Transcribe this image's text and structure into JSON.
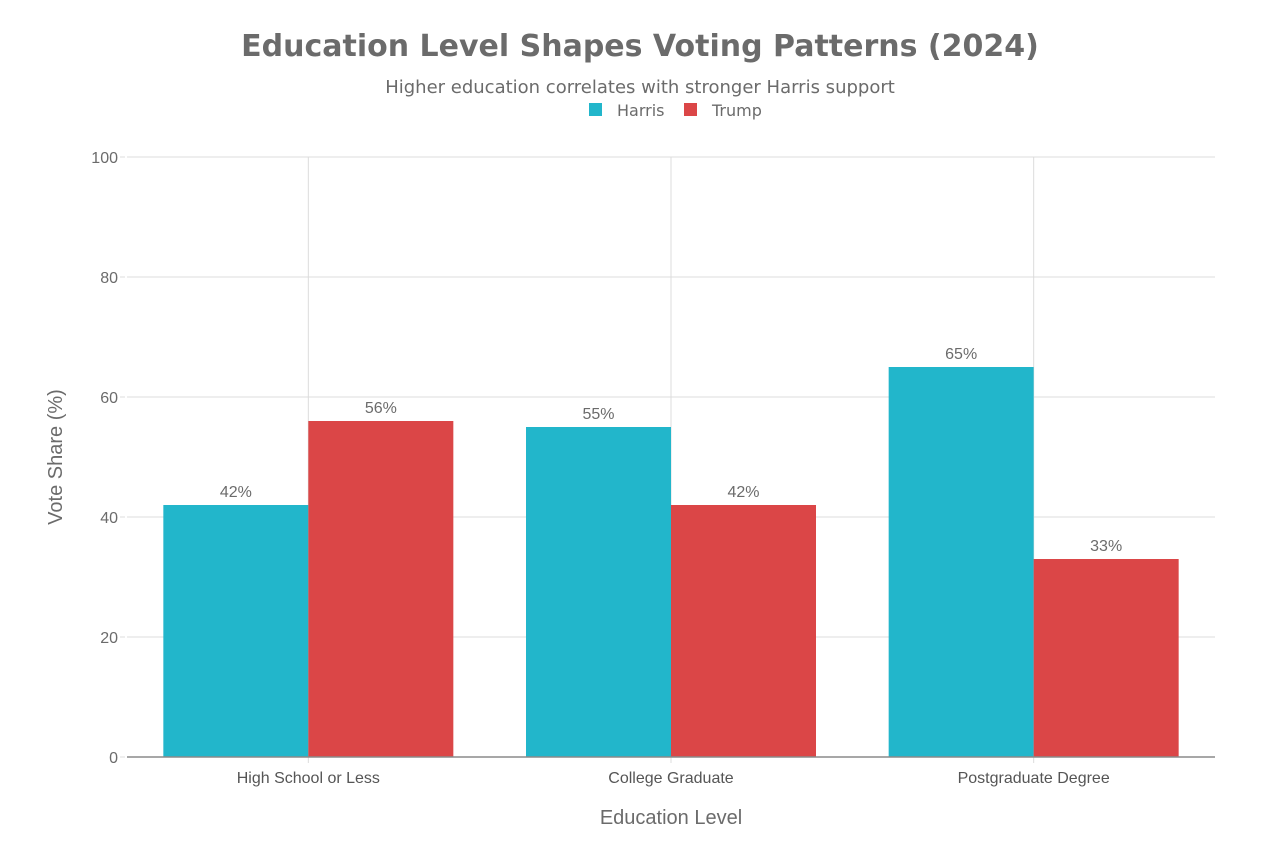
{
  "chart_data": {
    "type": "bar",
    "title": "Education Level Shapes Voting Patterns (2024)",
    "subtitle": "Higher education correlates with stronger Harris support",
    "xlabel": "Education Level",
    "ylabel": "Vote Share (%)",
    "ylim": [
      0,
      100
    ],
    "yticks": [
      0,
      20,
      40,
      60,
      80,
      100
    ],
    "grid": true,
    "legend_position": "top-center",
    "categories": [
      "High School or Less",
      "College Graduate",
      "Postgraduate Degree"
    ],
    "series": [
      {
        "name": "Harris",
        "color": "#22b6cb",
        "values": [
          42,
          55,
          65
        ],
        "labels": [
          "42%",
          "55%",
          "65%"
        ]
      },
      {
        "name": "Trump",
        "color": "#db4647",
        "values": [
          56,
          42,
          33
        ],
        "labels": [
          "56%",
          "42%",
          "33%"
        ]
      }
    ]
  }
}
